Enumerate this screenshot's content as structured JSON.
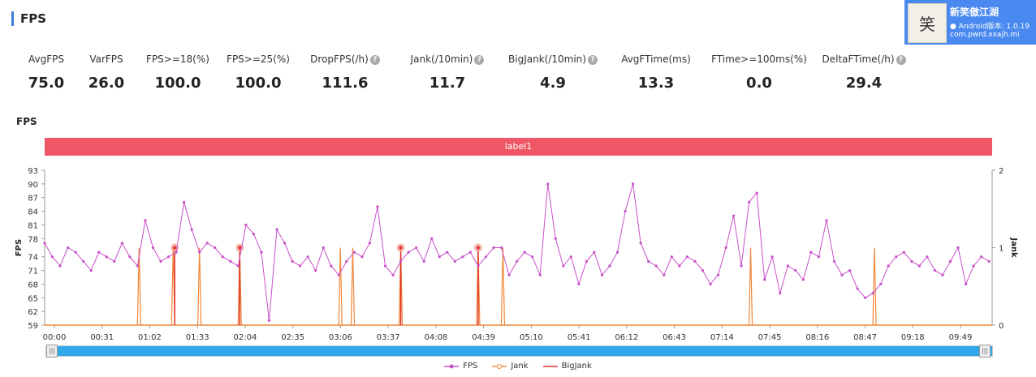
{
  "page": {
    "title": "FPS"
  },
  "app": {
    "name": "新笑傲江湖",
    "version": "Android版本: 1.0.19",
    "package": "com.pwrd.xxajh.mi",
    "icon": "game-logo-icon",
    "icon_text": "笑"
  },
  "stats": [
    {
      "label": "AvgFPS",
      "value": "75.0",
      "help": false
    },
    {
      "label": "VarFPS",
      "value": "26.0",
      "help": false
    },
    {
      "label": "FPS>=18(%)",
      "value": "100.0",
      "help": false
    },
    {
      "label": "FPS>=25(%)",
      "value": "100.0",
      "help": false
    },
    {
      "label": "DropFPS(/h)",
      "value": "111.6",
      "help": true
    },
    {
      "label": "Jank(/10min)",
      "value": "11.7",
      "help": true
    },
    {
      "label": "BigJank(/10min)",
      "value": "4.9",
      "help": true
    },
    {
      "label": "AvgFTime(ms)",
      "value": "13.3",
      "help": false
    },
    {
      "label": "FTime>=100ms(%)",
      "value": "0.0",
      "help": false
    },
    {
      "label": "DeltaFTime(/h)",
      "value": "29.4",
      "help": true
    }
  ],
  "colors": {
    "accent": "#3d7fe0",
    "fps": "#c850c8",
    "jank": "#f0883a",
    "bigjank": "#e0302a",
    "label_bar": "#ef5766",
    "scrollbar": "#2fa8ea"
  },
  "chart_data": {
    "type": "line",
    "title": "FPS",
    "band_label": "label1",
    "ylabel": "FPS",
    "y2label": "Jank",
    "ylim": [
      59,
      93
    ],
    "y2lim": [
      0,
      2
    ],
    "yticks": [
      "59",
      "62",
      "65",
      "68",
      "71",
      "74",
      "78",
      "81",
      "84",
      "87",
      "90",
      "93"
    ],
    "y2ticks": [
      "0",
      "1",
      "2"
    ],
    "xlim": [
      0,
      612
    ],
    "xtick_labels": [
      "00:00",
      "00:31",
      "01:02",
      "01:33",
      "02:04",
      "02:35",
      "03:06",
      "03:37",
      "04:08",
      "04:39",
      "05:10",
      "05:41",
      "06:12",
      "06:43",
      "07:14",
      "07:45",
      "08:16",
      "08:47",
      "09:18",
      "09:49"
    ],
    "legend": [
      "FPS",
      "Jank",
      "BigJank"
    ],
    "legend_position": "bottom",
    "grid": false,
    "series": [
      {
        "name": "FPS",
        "x": [
          0,
          5,
          10,
          15,
          20,
          25,
          30,
          35,
          40,
          45,
          50,
          55,
          60,
          65,
          70,
          75,
          80,
          85,
          90,
          95,
          100,
          105,
          110,
          115,
          120,
          125,
          130,
          135,
          140,
          145,
          150,
          155,
          160,
          165,
          170,
          175,
          180,
          185,
          190,
          195,
          200,
          205,
          210,
          215,
          220,
          225,
          230,
          235,
          240,
          245,
          250,
          255,
          260,
          265,
          270,
          275,
          280,
          285,
          290,
          295,
          300,
          305,
          310,
          315,
          320,
          325,
          330,
          335,
          340,
          345,
          350,
          355,
          360,
          365,
          370,
          375,
          380,
          385,
          390,
          395,
          400,
          405,
          410,
          415,
          420,
          425,
          430,
          435,
          440,
          445,
          450,
          455,
          460,
          465,
          470,
          475,
          480,
          485,
          490,
          495,
          500,
          505,
          510,
          515,
          520,
          525,
          530,
          535,
          540,
          545,
          550,
          555,
          560,
          565,
          570,
          575,
          580,
          585,
          590,
          595,
          600,
          605,
          610
        ],
        "values": [
          77,
          74,
          72,
          76,
          75,
          73,
          71,
          75,
          74,
          73,
          77,
          74,
          72,
          82,
          76,
          73,
          74,
          75,
          86,
          80,
          75,
          77,
          76,
          74,
          73,
          72,
          81,
          79,
          75,
          60,
          80,
          77,
          73,
          72,
          74,
          71,
          76,
          72,
          70,
          73,
          75,
          74,
          77,
          85,
          72,
          70,
          73,
          75,
          76,
          73,
          78,
          74,
          75,
          73,
          74,
          75,
          72,
          74,
          76,
          76,
          70,
          73,
          75,
          74,
          70,
          90,
          78,
          72,
          74,
          68,
          73,
          75,
          70,
          72,
          75,
          84,
          90,
          77,
          73,
          72,
          70,
          74,
          72,
          74,
          73,
          71,
          68,
          70,
          76,
          83,
          72,
          86,
          88,
          69,
          74,
          66,
          72,
          71,
          69,
          75,
          74,
          82,
          73,
          70,
          71,
          67,
          65,
          66,
          68,
          72,
          74,
          75,
          73,
          72,
          74,
          71,
          70,
          73,
          76,
          68,
          72,
          74,
          73
        ]
      },
      {
        "name": "Jank",
        "spikes_x": [
          61,
          83,
          100,
          126,
          191,
          199,
          230,
          280,
          296,
          456,
          536
        ],
        "spike_value": 1
      },
      {
        "name": "BigJank",
        "spikes_x": [
          84,
          126,
          230,
          280
        ],
        "spike_value": 1
      }
    ]
  }
}
